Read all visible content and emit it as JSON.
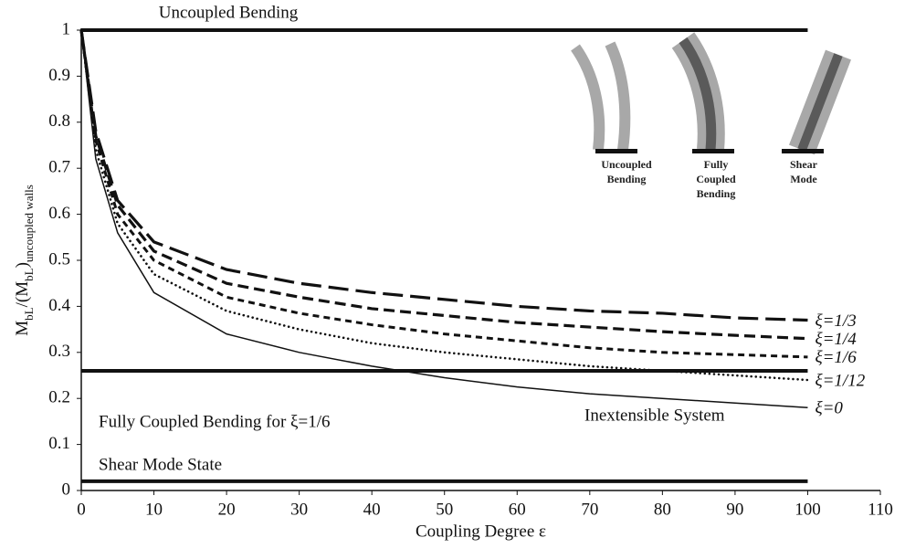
{
  "chart_data": {
    "type": "line",
    "x_label": "Coupling Degree ε",
    "y_label": [
      "M",
      "bL",
      "/(M",
      "bL",
      ")",
      "uncoupled walls"
    ],
    "xlim": [
      0,
      110
    ],
    "xticks": [
      0,
      10,
      20,
      30,
      40,
      50,
      60,
      70,
      80,
      90,
      100,
      110
    ],
    "ylim": [
      0,
      1
    ],
    "yticks": [
      0,
      0.1,
      0.2,
      0.3,
      0.4,
      0.5,
      0.6,
      0.7,
      0.8,
      0.9,
      1
    ],
    "series": [
      {
        "name": "ξ=1/3",
        "color": "#111111",
        "dash": "long",
        "x": [
          0,
          2,
          5,
          10,
          20,
          30,
          40,
          50,
          60,
          70,
          80,
          90,
          100
        ],
        "values": [
          1,
          0.78,
          0.63,
          0.54,
          0.48,
          0.45,
          0.43,
          0.415,
          0.4,
          0.39,
          0.385,
          0.375,
          0.37
        ]
      },
      {
        "name": "ξ=1/4",
        "color": "#111111",
        "dash": "medium",
        "x": [
          0,
          2,
          5,
          10,
          20,
          30,
          40,
          50,
          60,
          70,
          80,
          90,
          100
        ],
        "values": [
          1,
          0.77,
          0.62,
          0.52,
          0.45,
          0.42,
          0.395,
          0.38,
          0.365,
          0.355,
          0.345,
          0.337,
          0.33
        ]
      },
      {
        "name": "ξ=1/6",
        "color": "#111111",
        "dash": "short",
        "x": [
          0,
          2,
          5,
          10,
          20,
          30,
          40,
          50,
          60,
          70,
          80,
          90,
          100
        ],
        "values": [
          1,
          0.76,
          0.6,
          0.5,
          0.42,
          0.385,
          0.36,
          0.34,
          0.325,
          0.31,
          0.3,
          0.295,
          0.29
        ]
      },
      {
        "name": "ξ=1/12",
        "color": "#111111",
        "dash": "dotted",
        "x": [
          0,
          2,
          5,
          10,
          20,
          30,
          40,
          50,
          60,
          70,
          80,
          90,
          100
        ],
        "values": [
          1,
          0.74,
          0.58,
          0.47,
          0.39,
          0.35,
          0.32,
          0.3,
          0.285,
          0.27,
          0.26,
          0.25,
          0.24
        ]
      },
      {
        "name": "ξ=0",
        "color": "#111111",
        "dash": "solid",
        "x": [
          0,
          2,
          5,
          10,
          20,
          30,
          40,
          50,
          60,
          70,
          80,
          90,
          100
        ],
        "values": [
          1,
          0.72,
          0.56,
          0.43,
          0.34,
          0.3,
          0.27,
          0.245,
          0.225,
          0.21,
          0.2,
          0.19,
          0.18
        ]
      },
      {
        "name": "Uncoupled Bending",
        "color": "#111111",
        "dash": "thick",
        "x": [
          0,
          100
        ],
        "values": [
          1,
          1
        ]
      },
      {
        "name": "Fully Coupled Bending for ξ=1/6",
        "color": "#111111",
        "dash": "thick",
        "x": [
          0,
          100
        ],
        "values": [
          0.26,
          0.26
        ]
      },
      {
        "name": "Shear Mode State",
        "color": "#111111",
        "dash": "thick",
        "x": [
          0,
          100
        ],
        "values": [
          0.02,
          0.02
        ]
      }
    ],
    "annotations": [
      "Inextensible System"
    ],
    "inset_labels": [
      [
        "Uncoupled",
        "Bending"
      ],
      [
        "Fully",
        "Coupled",
        "Bending"
      ],
      [
        "Shear",
        "Mode"
      ]
    ]
  }
}
